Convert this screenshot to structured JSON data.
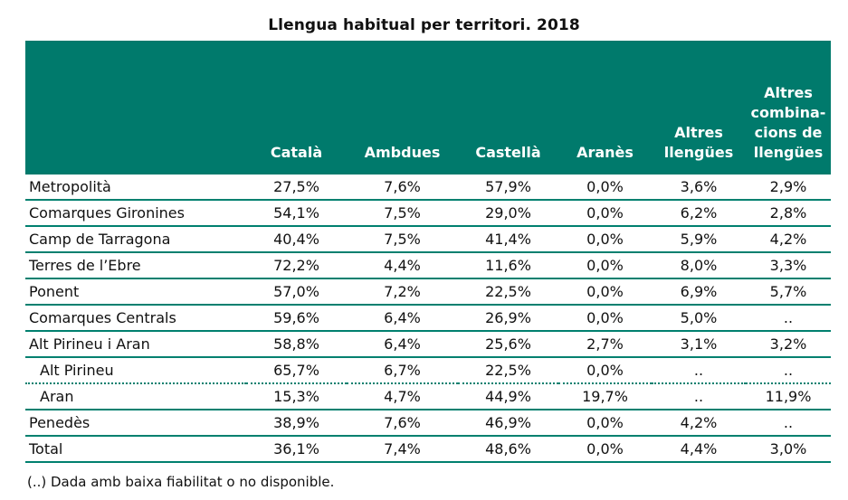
{
  "title": "Llengua habitual per territori. 2018",
  "header": {
    "columns": [
      "Català",
      "Ambdues",
      "Castellà",
      "Aranès",
      "Altres llengües",
      "Altres combina-cions de llengües"
    ]
  },
  "rows": [
    {
      "name": "Metropolità",
      "values": [
        "27,5%",
        "7,6%",
        "57,9%",
        "0,0%",
        "3,6%",
        "2,9%"
      ]
    },
    {
      "name": "Comarques Gironines",
      "values": [
        "54,1%",
        "7,5%",
        "29,0%",
        "0,0%",
        "6,2%",
        "2,8%"
      ]
    },
    {
      "name": "Camp de Tarragona",
      "values": [
        "40,4%",
        "7,5%",
        "41,4%",
        "0,0%",
        "5,9%",
        "4,2%"
      ]
    },
    {
      "name": "Terres de l’Ebre",
      "values": [
        "72,2%",
        "4,4%",
        "11,6%",
        "0,0%",
        "8,0%",
        "3,3%"
      ]
    },
    {
      "name": "Ponent",
      "values": [
        "57,0%",
        "7,2%",
        "22,5%",
        "0,0%",
        "6,9%",
        "5,7%"
      ]
    },
    {
      "name": "Comarques Centrals",
      "values": [
        "59,6%",
        "6,4%",
        "26,9%",
        "0,0%",
        "5,0%",
        ".."
      ]
    },
    {
      "name": "Alt Pirineu i Aran",
      "values": [
        "58,8%",
        "6,4%",
        "25,6%",
        "2,7%",
        "3,1%",
        "3,2%"
      ]
    },
    {
      "name": "Alt Pirineu",
      "values": [
        "65,7%",
        "6,7%",
        "22,5%",
        "0,0%",
        "..",
        ".."
      ]
    },
    {
      "name": "Aran",
      "values": [
        "15,3%",
        "4,7%",
        "44,9%",
        "19,7%",
        "..",
        "11,9%"
      ]
    },
    {
      "name": "Penedès",
      "values": [
        "38,9%",
        "7,6%",
        "46,9%",
        "0,0%",
        "4,2%",
        ".."
      ]
    },
    {
      "name": "Total",
      "values": [
        "36,1%",
        "7,4%",
        "48,6%",
        "0,0%",
        "4,4%",
        "3,0%"
      ]
    }
  ],
  "note": "(..) Dada amb baixa fiabilitat o no disponible.",
  "colors": {
    "header_bg": "#007a6c",
    "rule": "#00806f"
  }
}
